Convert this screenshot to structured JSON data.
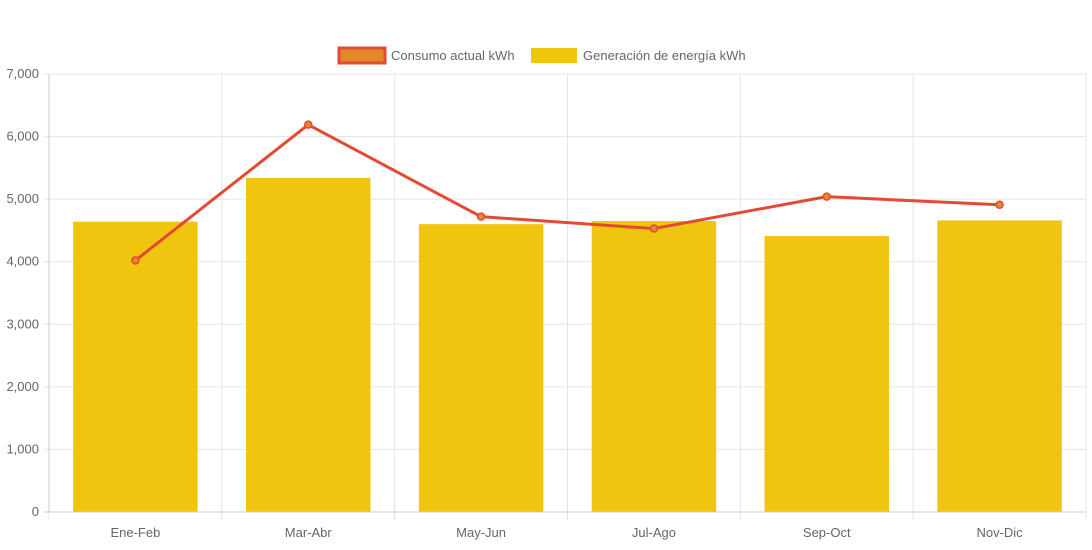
{
  "chart_data": {
    "type": "bar",
    "title": "",
    "xlabel": "",
    "ylabel": "",
    "categories": [
      "Ene-Feb",
      "Mar-Abr",
      "May-Jun",
      "Jul-Ago",
      "Sep-Oct",
      "Nov-Dic"
    ],
    "ylim": [
      0,
      7000
    ],
    "yticks": [
      0,
      1000,
      2000,
      3000,
      4000,
      5000,
      6000,
      7000
    ],
    "ytick_labels": [
      "0",
      "1,000",
      "2,000",
      "3,000",
      "4,000",
      "5,000",
      "6,000",
      "7,000"
    ],
    "grid": true,
    "legend_position": "top-center",
    "series": [
      {
        "name": "Consumo actual kWh",
        "type": "line",
        "color": "#e34a33",
        "fill_color": "#e08a2a",
        "values": [
          4020,
          6190,
          4720,
          4530,
          5040,
          4910
        ]
      },
      {
        "name": "Generación de energía kWh",
        "type": "bar",
        "color": "#f0c510",
        "values": [
          4640,
          5340,
          4600,
          4650,
          4410,
          4660
        ]
      }
    ]
  }
}
